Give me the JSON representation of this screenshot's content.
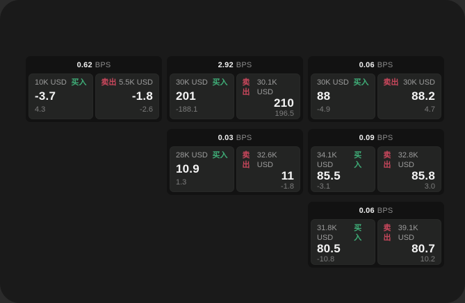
{
  "labels": {
    "bps": "BPS",
    "buy": "买入",
    "sell": "卖出"
  },
  "colors": {
    "buy_accent": "#3fae78",
    "sell_accent": "#c9475c",
    "window_bg": "#1a1a1a",
    "card_bg": "#121212",
    "tile_bg": "#232423"
  },
  "cards": [
    {
      "bps": "0.62",
      "buy": {
        "amount": "10K USD",
        "price": "-3.7",
        "delta": "4.3"
      },
      "sell": {
        "amount": "5.5K USD",
        "price": "-1.8",
        "delta": "-2.6"
      }
    },
    {
      "bps": "2.92",
      "buy": {
        "amount": "30K USD",
        "price": "201",
        "delta": "-188.1"
      },
      "sell": {
        "amount": "30.1K USD",
        "price": "210",
        "delta": "196.5"
      }
    },
    {
      "bps": "0.06",
      "buy": {
        "amount": "30K USD",
        "price": "88",
        "delta": "-4.9"
      },
      "sell": {
        "amount": "30K USD",
        "price": "88.2",
        "delta": "4.7"
      }
    },
    {
      "bps": "0.03",
      "buy": {
        "amount": "28K USD",
        "price": "10.9",
        "delta": "1.3"
      },
      "sell": {
        "amount": "32.6K USD",
        "price": "11",
        "delta": "-1.8"
      }
    },
    {
      "bps": "0.09",
      "buy": {
        "amount": "34.1K USD",
        "price": "85.5",
        "delta": "-3.1"
      },
      "sell": {
        "amount": "32.8K USD",
        "price": "85.8",
        "delta": "3.0"
      }
    },
    {
      "bps": "0.06",
      "buy": {
        "amount": "31.8K USD",
        "price": "80.5",
        "delta": "-10.8"
      },
      "sell": {
        "amount": "39.1K USD",
        "price": "80.7",
        "delta": "10.2"
      }
    }
  ]
}
